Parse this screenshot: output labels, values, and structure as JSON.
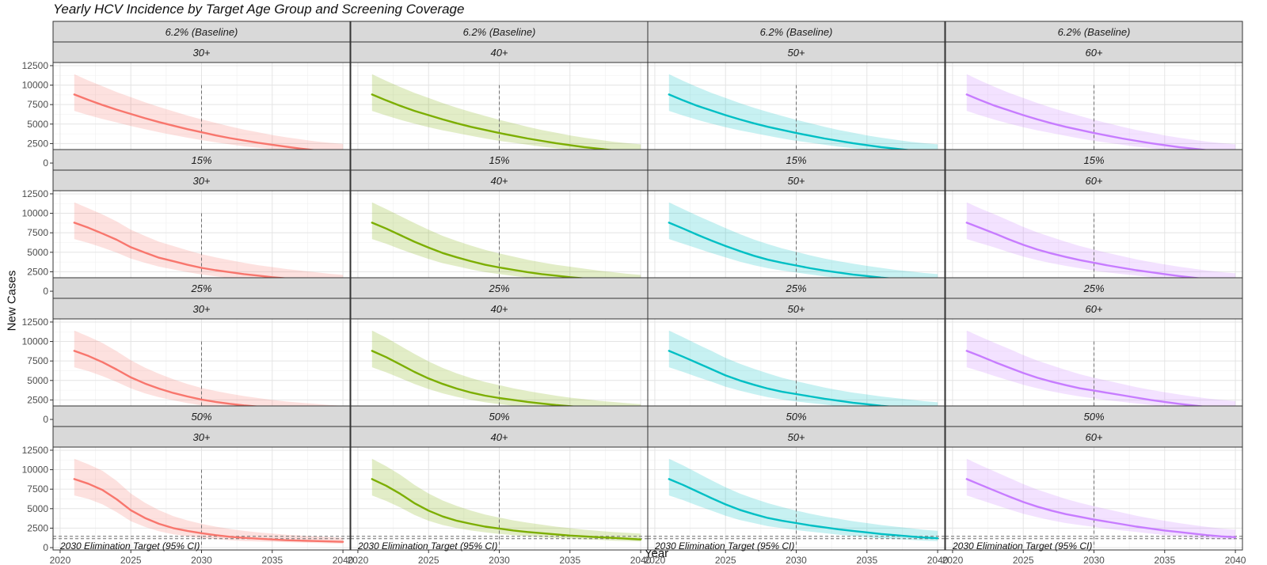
{
  "chart_data": {
    "type": "line",
    "title": "Yearly HCV Incidence by Target Age Group and Screening Coverage",
    "xlabel": "Year",
    "ylabel": "New Cases",
    "xlim": [
      2019.5,
      2040.5
    ],
    "ylim": [
      -300,
      12900
    ],
    "x_ticks": [
      2020,
      2025,
      2030,
      2035,
      2040
    ],
    "y_ticks": [
      0,
      2500,
      5000,
      7500,
      10000,
      12500
    ],
    "x": [
      2021,
      2022,
      2023,
      2024,
      2025,
      2026,
      2027,
      2028,
      2029,
      2030,
      2031,
      2032,
      2033,
      2034,
      2035,
      2036,
      2037,
      2038,
      2039,
      2040
    ],
    "vertical_reference_x": 2030,
    "vertical_reference_range": [
      0,
      10000
    ],
    "target_line": {
      "label": "2030 Elimination Target (95% CI)",
      "lower": 1150,
      "upper": 1450
    },
    "grid": true,
    "facet_rows": [
      "6.2% (Baseline)",
      "15%",
      "25%",
      "50%"
    ],
    "facet_cols": [
      "30+",
      "40+",
      "50+",
      "60+"
    ],
    "colors": {
      "30+": "#F8766D",
      "40+": "#7CAE00",
      "50+": "#00BFC4",
      "60+": "#C77CFF"
    },
    "panels": [
      {
        "coverage": "6.2% (Baseline)",
        "age": "30+",
        "y": [
          8800,
          8100,
          7450,
          6850,
          6300,
          5750,
          5250,
          4800,
          4350,
          3950,
          3550,
          3200,
          2900,
          2600,
          2350,
          2100,
          1850,
          1650,
          1450,
          1300
        ],
        "lower": [
          6700,
          6150,
          5650,
          5200,
          4750,
          4350,
          3950,
          3600,
          3250,
          2950,
          2650,
          2400,
          2150,
          1950,
          1750,
          1550,
          1350,
          1200,
          1050,
          950
        ],
        "upper": [
          11400,
          10600,
          9850,
          9100,
          8450,
          7800,
          7200,
          6650,
          6100,
          5600,
          5150,
          4700,
          4300,
          3950,
          3600,
          3300,
          3050,
          2800,
          2600,
          2450
        ]
      },
      {
        "coverage": "6.2% (Baseline)",
        "age": "40+",
        "y": [
          8800,
          8050,
          7350,
          6700,
          6150,
          5600,
          5100,
          4650,
          4250,
          3850,
          3500,
          3150,
          2850,
          2550,
          2300,
          2050,
          1850,
          1650,
          1450,
          1300
        ],
        "lower": [
          6700,
          6100,
          5550,
          5050,
          4600,
          4200,
          3850,
          3500,
          3150,
          2850,
          2600,
          2350,
          2100,
          1900,
          1700,
          1500,
          1350,
          1200,
          1050,
          950
        ],
        "upper": [
          11400,
          10550,
          9750,
          9000,
          8350,
          7700,
          7100,
          6550,
          6050,
          5550,
          5100,
          4650,
          4250,
          3900,
          3550,
          3250,
          3000,
          2750,
          2550,
          2400
        ]
      },
      {
        "coverage": "6.2% (Baseline)",
        "age": "50+",
        "y": [
          8800,
          8050,
          7350,
          6750,
          6150,
          5600,
          5100,
          4650,
          4250,
          3850,
          3500,
          3150,
          2850,
          2550,
          2300,
          2050,
          1850,
          1650,
          1450,
          1300
        ],
        "lower": [
          6700,
          6100,
          5550,
          5050,
          4600,
          4200,
          3850,
          3500,
          3150,
          2850,
          2600,
          2350,
          2100,
          1900,
          1700,
          1500,
          1350,
          1200,
          1050,
          950
        ],
        "upper": [
          11400,
          10550,
          9750,
          9000,
          8350,
          7700,
          7100,
          6550,
          6050,
          5550,
          5100,
          4650,
          4250,
          3900,
          3550,
          3250,
          3000,
          2750,
          2550,
          2400
        ]
      },
      {
        "coverage": "6.2% (Baseline)",
        "age": "60+",
        "y": [
          8800,
          8050,
          7350,
          6750,
          6150,
          5600,
          5100,
          4650,
          4250,
          3850,
          3500,
          3150,
          2850,
          2550,
          2300,
          2050,
          1850,
          1650,
          1450,
          1300
        ],
        "lower": [
          6700,
          6100,
          5550,
          5050,
          4600,
          4200,
          3850,
          3500,
          3150,
          2850,
          2600,
          2350,
          2100,
          1900,
          1700,
          1500,
          1350,
          1200,
          1050,
          950
        ],
        "upper": [
          11400,
          10550,
          9750,
          9000,
          8350,
          7700,
          7100,
          6550,
          6050,
          5550,
          5100,
          4650,
          4250,
          3900,
          3550,
          3250,
          3000,
          2750,
          2550,
          2400
        ]
      },
      {
        "coverage": "15%",
        "age": "30+",
        "y": [
          8800,
          8150,
          7400,
          6600,
          5650,
          4950,
          4300,
          3850,
          3400,
          3000,
          2700,
          2450,
          2200,
          2000,
          1800,
          1650,
          1500,
          1350,
          1200,
          1100
        ],
        "lower": [
          6700,
          6200,
          5600,
          4950,
          4200,
          3650,
          3150,
          2800,
          2450,
          2150,
          1900,
          1700,
          1550,
          1400,
          1250,
          1100,
          1000,
          900,
          800,
          750
        ],
        "upper": [
          11400,
          10650,
          9850,
          8950,
          7900,
          7100,
          6350,
          5800,
          5250,
          4750,
          4350,
          4000,
          3650,
          3350,
          3100,
          2850,
          2650,
          2450,
          2250,
          2100
        ]
      },
      {
        "coverage": "15%",
        "age": "40+",
        "y": [
          8800,
          8050,
          7200,
          6350,
          5600,
          4900,
          4350,
          3850,
          3400,
          3050,
          2750,
          2450,
          2200,
          2000,
          1800,
          1650,
          1500,
          1350,
          1200,
          1100
        ],
        "lower": [
          6700,
          6100,
          5400,
          4750,
          4150,
          3600,
          3200,
          2800,
          2450,
          2200,
          1950,
          1750,
          1550,
          1400,
          1250,
          1100,
          1000,
          900,
          800,
          750
        ],
        "upper": [
          11400,
          10550,
          9650,
          8750,
          7900,
          7100,
          6450,
          5850,
          5300,
          4850,
          4450,
          4050,
          3700,
          3400,
          3150,
          2900,
          2650,
          2450,
          2250,
          2100
        ]
      },
      {
        "coverage": "15%",
        "age": "50+",
        "y": [
          8800,
          8050,
          7250,
          6500,
          5800,
          5150,
          4550,
          4050,
          3650,
          3300,
          2950,
          2650,
          2400,
          2150,
          1950,
          1750,
          1600,
          1450,
          1300,
          1200
        ],
        "lower": [
          6700,
          6100,
          5500,
          4900,
          4350,
          3800,
          3350,
          2950,
          2650,
          2400,
          2150,
          1900,
          1700,
          1500,
          1350,
          1200,
          1100,
          1000,
          900,
          850
        ],
        "upper": [
          11400,
          10550,
          9700,
          8900,
          8100,
          7350,
          6650,
          6050,
          5500,
          5050,
          4600,
          4200,
          3850,
          3550,
          3250,
          3000,
          2750,
          2550,
          2350,
          2200
        ]
      },
      {
        "coverage": "15%",
        "age": "60+",
        "y": [
          8800,
          8100,
          7400,
          6650,
          5950,
          5350,
          4850,
          4400,
          4000,
          3650,
          3300,
          3000,
          2700,
          2450,
          2200,
          1950,
          1750,
          1550,
          1400,
          1300
        ],
        "lower": [
          6700,
          6150,
          5600,
          5000,
          4450,
          4000,
          3600,
          3250,
          2950,
          2650,
          2400,
          2200,
          2000,
          1800,
          1600,
          1400,
          1250,
          1100,
          1000,
          950
        ],
        "upper": [
          11400,
          10600,
          9850,
          9050,
          8250,
          7550,
          6950,
          6350,
          5800,
          5350,
          4900,
          4500,
          4100,
          3750,
          3450,
          3150,
          2900,
          2650,
          2450,
          2300
        ]
      },
      {
        "coverage": "25%",
        "age": "30+",
        "y": [
          8800,
          8150,
          7350,
          6400,
          5400,
          4600,
          3950,
          3400,
          2950,
          2550,
          2250,
          2000,
          1800,
          1650,
          1500,
          1350,
          1250,
          1100,
          1000,
          950
        ],
        "lower": [
          6700,
          6200,
          5550,
          4800,
          4000,
          3350,
          2850,
          2450,
          2100,
          1800,
          1550,
          1350,
          1200,
          1100,
          1000,
          900,
          800,
          750,
          700,
          650
        ],
        "upper": [
          11400,
          10650,
          9800,
          8750,
          7600,
          6650,
          5850,
          5150,
          4550,
          4050,
          3650,
          3300,
          3000,
          2750,
          2500,
          2300,
          2150,
          2000,
          1850,
          1750
        ]
      },
      {
        "coverage": "25%",
        "age": "40+",
        "y": [
          8800,
          8000,
          7050,
          6100,
          5250,
          4550,
          3950,
          3450,
          3050,
          2750,
          2500,
          2250,
          2050,
          1850,
          1700,
          1550,
          1400,
          1300,
          1150,
          1050
        ],
        "lower": [
          6700,
          6050,
          5300,
          4550,
          3900,
          3350,
          2900,
          2500,
          2200,
          1950,
          1750,
          1600,
          1450,
          1300,
          1200,
          1100,
          1000,
          900,
          800,
          750
        ],
        "upper": [
          11400,
          10500,
          9450,
          8400,
          7450,
          6600,
          5900,
          5300,
          4800,
          4400,
          4000,
          3650,
          3350,
          3050,
          2800,
          2600,
          2400,
          2250,
          2100,
          1950
        ]
      },
      {
        "coverage": "25%",
        "age": "50+",
        "y": [
          8800,
          8050,
          7250,
          6450,
          5650,
          5000,
          4450,
          3950,
          3550,
          3250,
          2950,
          2650,
          2400,
          2150,
          1950,
          1750,
          1600,
          1450,
          1300,
          1200
        ],
        "lower": [
          6700,
          6100,
          5450,
          4850,
          4200,
          3700,
          3250,
          2850,
          2550,
          2300,
          2100,
          1900,
          1700,
          1500,
          1350,
          1200,
          1100,
          1000,
          900,
          850
        ],
        "upper": [
          11400,
          10550,
          9650,
          8800,
          7900,
          7150,
          6500,
          5900,
          5350,
          4900,
          4500,
          4100,
          3750,
          3450,
          3200,
          2950,
          2750,
          2550,
          2350,
          2200
        ]
      },
      {
        "coverage": "25%",
        "age": "60+",
        "y": [
          8800,
          8100,
          7350,
          6650,
          5950,
          5350,
          4850,
          4400,
          4000,
          3700,
          3400,
          3100,
          2800,
          2500,
          2250,
          2000,
          1800,
          1600,
          1450,
          1350
        ],
        "lower": [
          6700,
          6150,
          5550,
          5000,
          4450,
          4000,
          3600,
          3250,
          2950,
          2700,
          2450,
          2250,
          2050,
          1850,
          1650,
          1450,
          1300,
          1150,
          1050,
          1000
        ],
        "upper": [
          11400,
          10600,
          9800,
          9050,
          8250,
          7550,
          6950,
          6350,
          5800,
          5350,
          4950,
          4550,
          4150,
          3800,
          3500,
          3200,
          2950,
          2700,
          2500,
          2350
        ]
      },
      {
        "coverage": "50%",
        "age": "30+",
        "y": [
          8800,
          8200,
          7400,
          6200,
          4800,
          3800,
          3050,
          2500,
          2150,
          1850,
          1600,
          1400,
          1250,
          1150,
          1050,
          950,
          900,
          850,
          800,
          750
        ],
        "lower": [
          6700,
          6250,
          5550,
          4550,
          3400,
          2650,
          2100,
          1700,
          1450,
          1250,
          1100,
          950,
          850,
          800,
          750,
          700,
          650,
          600,
          550,
          500
        ],
        "upper": [
          11400,
          10700,
          9850,
          8550,
          6950,
          5750,
          4800,
          4050,
          3500,
          3050,
          2700,
          2400,
          2150,
          1950,
          1800,
          1650,
          1550,
          1450,
          1350,
          1250
        ]
      },
      {
        "coverage": "50%",
        "age": "40+",
        "y": [
          8800,
          7950,
          6900,
          5700,
          4750,
          4000,
          3450,
          3050,
          2700,
          2450,
          2200,
          2000,
          1850,
          1700,
          1550,
          1450,
          1350,
          1250,
          1150,
          1050
        ],
        "lower": [
          6700,
          6000,
          5150,
          4200,
          3450,
          2900,
          2500,
          2200,
          1950,
          1750,
          1600,
          1450,
          1350,
          1250,
          1150,
          1050,
          1000,
          900,
          850,
          800
        ],
        "upper": [
          11400,
          10450,
          9350,
          8050,
          6950,
          6050,
          5350,
          4750,
          4250,
          3850,
          3500,
          3200,
          2950,
          2700,
          2500,
          2300,
          2150,
          2000,
          1900,
          1800
        ]
      },
      {
        "coverage": "50%",
        "age": "50+",
        "y": [
          8800,
          8050,
          7200,
          6350,
          5550,
          4850,
          4300,
          3800,
          3450,
          3150,
          2850,
          2600,
          2350,
          2150,
          1950,
          1750,
          1600,
          1450,
          1300,
          1200
        ],
        "lower": [
          6700,
          6100,
          5400,
          4750,
          4100,
          3550,
          3150,
          2750,
          2500,
          2250,
          2050,
          1850,
          1650,
          1500,
          1350,
          1200,
          1100,
          1000,
          900,
          850
        ],
        "upper": [
          11400,
          10550,
          9600,
          8650,
          7750,
          6950,
          6300,
          5700,
          5200,
          4750,
          4350,
          4000,
          3700,
          3400,
          3150,
          2900,
          2700,
          2500,
          2300,
          2150
        ]
      },
      {
        "coverage": "50%",
        "age": "60+",
        "y": [
          8800,
          8050,
          7300,
          6550,
          5850,
          5250,
          4750,
          4300,
          3950,
          3600,
          3300,
          3000,
          2700,
          2450,
          2200,
          2000,
          1800,
          1600,
          1450,
          1350
        ],
        "lower": [
          6700,
          6100,
          5500,
          4900,
          4350,
          3900,
          3500,
          3150,
          2900,
          2650,
          2400,
          2200,
          2000,
          1800,
          1600,
          1450,
          1300,
          1150,
          1050,
          1000
        ],
        "upper": [
          11400,
          10550,
          9750,
          8950,
          8150,
          7450,
          6850,
          6250,
          5750,
          5300,
          4900,
          4500,
          4100,
          3750,
          3450,
          3150,
          2900,
          2650,
          2450,
          2300
        ]
      }
    ]
  }
}
